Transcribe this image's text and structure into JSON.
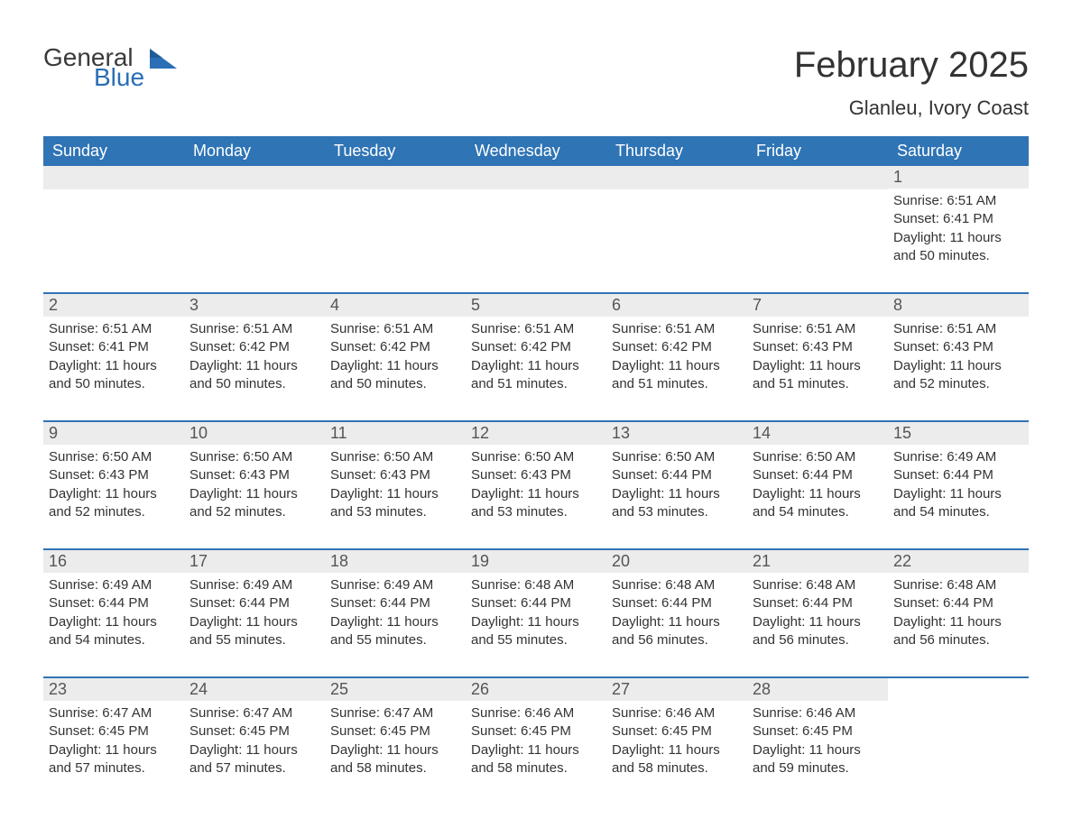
{
  "brand": {
    "word1": "General",
    "word2": "Blue",
    "word1_color": "#3a3a3a",
    "word2_color": "#2a6fb5",
    "mark_color": "#2a6fb5"
  },
  "header": {
    "month_title": "February 2025",
    "location": "Glanleu, Ivory Coast",
    "title_color": "#333333",
    "title_fontsize": 40,
    "location_fontsize": 22
  },
  "calendar": {
    "type": "table",
    "header_bg": "#2f74b5",
    "header_text_color": "#ffffff",
    "week_divider_color": "#2f74b5",
    "daynum_bg": "#ececec",
    "daynum_color": "#555555",
    "body_text_color": "#333333",
    "body_fontsize": 15,
    "weekday_fontsize": 18,
    "weekdays": [
      "Sunday",
      "Monday",
      "Tuesday",
      "Wednesday",
      "Thursday",
      "Friday",
      "Saturday"
    ],
    "labels": {
      "sunrise": "Sunrise: ",
      "sunset": "Sunset: ",
      "daylight": "Daylight: "
    },
    "weeks": [
      [
        null,
        null,
        null,
        null,
        null,
        null,
        {
          "d": "1",
          "sr": "6:51 AM",
          "ss": "6:41 PM",
          "dl": "11 hours and 50 minutes."
        }
      ],
      [
        {
          "d": "2",
          "sr": "6:51 AM",
          "ss": "6:41 PM",
          "dl": "11 hours and 50 minutes."
        },
        {
          "d": "3",
          "sr": "6:51 AM",
          "ss": "6:42 PM",
          "dl": "11 hours and 50 minutes."
        },
        {
          "d": "4",
          "sr": "6:51 AM",
          "ss": "6:42 PM",
          "dl": "11 hours and 50 minutes."
        },
        {
          "d": "5",
          "sr": "6:51 AM",
          "ss": "6:42 PM",
          "dl": "11 hours and 51 minutes."
        },
        {
          "d": "6",
          "sr": "6:51 AM",
          "ss": "6:42 PM",
          "dl": "11 hours and 51 minutes."
        },
        {
          "d": "7",
          "sr": "6:51 AM",
          "ss": "6:43 PM",
          "dl": "11 hours and 51 minutes."
        },
        {
          "d": "8",
          "sr": "6:51 AM",
          "ss": "6:43 PM",
          "dl": "11 hours and 52 minutes."
        }
      ],
      [
        {
          "d": "9",
          "sr": "6:50 AM",
          "ss": "6:43 PM",
          "dl": "11 hours and 52 minutes."
        },
        {
          "d": "10",
          "sr": "6:50 AM",
          "ss": "6:43 PM",
          "dl": "11 hours and 52 minutes."
        },
        {
          "d": "11",
          "sr": "6:50 AM",
          "ss": "6:43 PM",
          "dl": "11 hours and 53 minutes."
        },
        {
          "d": "12",
          "sr": "6:50 AM",
          "ss": "6:43 PM",
          "dl": "11 hours and 53 minutes."
        },
        {
          "d": "13",
          "sr": "6:50 AM",
          "ss": "6:44 PM",
          "dl": "11 hours and 53 minutes."
        },
        {
          "d": "14",
          "sr": "6:50 AM",
          "ss": "6:44 PM",
          "dl": "11 hours and 54 minutes."
        },
        {
          "d": "15",
          "sr": "6:49 AM",
          "ss": "6:44 PM",
          "dl": "11 hours and 54 minutes."
        }
      ],
      [
        {
          "d": "16",
          "sr": "6:49 AM",
          "ss": "6:44 PM",
          "dl": "11 hours and 54 minutes."
        },
        {
          "d": "17",
          "sr": "6:49 AM",
          "ss": "6:44 PM",
          "dl": "11 hours and 55 minutes."
        },
        {
          "d": "18",
          "sr": "6:49 AM",
          "ss": "6:44 PM",
          "dl": "11 hours and 55 minutes."
        },
        {
          "d": "19",
          "sr": "6:48 AM",
          "ss": "6:44 PM",
          "dl": "11 hours and 55 minutes."
        },
        {
          "d": "20",
          "sr": "6:48 AM",
          "ss": "6:44 PM",
          "dl": "11 hours and 56 minutes."
        },
        {
          "d": "21",
          "sr": "6:48 AM",
          "ss": "6:44 PM",
          "dl": "11 hours and 56 minutes."
        },
        {
          "d": "22",
          "sr": "6:48 AM",
          "ss": "6:44 PM",
          "dl": "11 hours and 56 minutes."
        }
      ],
      [
        {
          "d": "23",
          "sr": "6:47 AM",
          "ss": "6:45 PM",
          "dl": "11 hours and 57 minutes."
        },
        {
          "d": "24",
          "sr": "6:47 AM",
          "ss": "6:45 PM",
          "dl": "11 hours and 57 minutes."
        },
        {
          "d": "25",
          "sr": "6:47 AM",
          "ss": "6:45 PM",
          "dl": "11 hours and 58 minutes."
        },
        {
          "d": "26",
          "sr": "6:46 AM",
          "ss": "6:45 PM",
          "dl": "11 hours and 58 minutes."
        },
        {
          "d": "27",
          "sr": "6:46 AM",
          "ss": "6:45 PM",
          "dl": "11 hours and 58 minutes."
        },
        {
          "d": "28",
          "sr": "6:46 AM",
          "ss": "6:45 PM",
          "dl": "11 hours and 59 minutes."
        },
        null
      ]
    ]
  }
}
